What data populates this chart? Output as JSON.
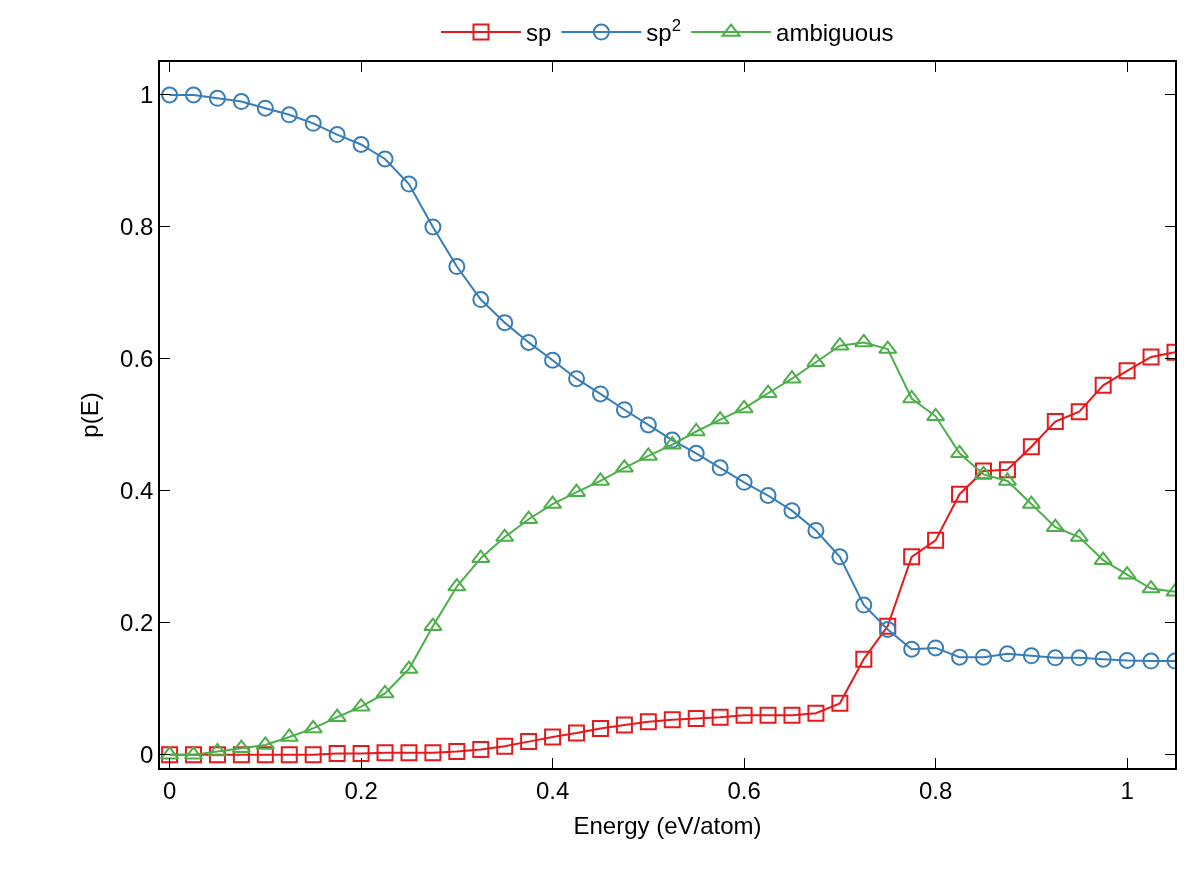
{
  "chart_data": {
    "type": "line",
    "xlabel": "Energy (eV/atom)",
    "ylabel": "p(E)",
    "x": [
      0,
      0.025,
      0.05,
      0.075,
      0.1,
      0.125,
      0.15,
      0.175,
      0.2,
      0.225,
      0.25,
      0.275,
      0.3,
      0.325,
      0.35,
      0.375,
      0.4,
      0.425,
      0.45,
      0.475,
      0.5,
      0.525,
      0.55,
      0.575,
      0.6,
      0.625,
      0.65,
      0.675,
      0.7,
      0.725,
      0.75,
      0.775,
      0.8,
      0.825,
      0.85,
      0.875,
      0.9,
      0.925,
      0.95,
      0.975,
      1.0,
      1.025,
      1.05
    ],
    "series": [
      {
        "name": "sp",
        "color": "#e41a1c",
        "marker": "square",
        "values": [
          0,
          0,
          0,
          0,
          0,
          0,
          0,
          0.002,
          0.002,
          0.003,
          0.003,
          0.003,
          0.005,
          0.008,
          0.013,
          0.02,
          0.027,
          0.033,
          0.04,
          0.045,
          0.05,
          0.053,
          0.055,
          0.057,
          0.06,
          0.06,
          0.06,
          0.063,
          0.078,
          0.145,
          0.195,
          0.3,
          0.325,
          0.395,
          0.43,
          0.432,
          0.467,
          0.505,
          0.52,
          0.56,
          0.582,
          0.603,
          0.61
        ]
      },
      {
        "name": "sp$^{2}$",
        "color": "#377eb8",
        "marker": "circle",
        "values": [
          1.0,
          1.0,
          0.995,
          0.99,
          0.98,
          0.97,
          0.957,
          0.94,
          0.925,
          0.903,
          0.865,
          0.8,
          0.74,
          0.69,
          0.655,
          0.625,
          0.598,
          0.57,
          0.547,
          0.523,
          0.5,
          0.477,
          0.457,
          0.435,
          0.413,
          0.393,
          0.37,
          0.34,
          0.3,
          0.227,
          0.19,
          0.16,
          0.162,
          0.148,
          0.148,
          0.153,
          0.15,
          0.147,
          0.147,
          0.145,
          0.143,
          0.142,
          0.142
        ]
      },
      {
        "name": "ambiguous",
        "color": "#4daf4a",
        "marker": "triangle",
        "values": [
          0,
          0,
          0.005,
          0.01,
          0.015,
          0.027,
          0.04,
          0.057,
          0.073,
          0.093,
          0.13,
          0.195,
          0.255,
          0.298,
          0.33,
          0.357,
          0.38,
          0.398,
          0.415,
          0.435,
          0.453,
          0.47,
          0.49,
          0.508,
          0.525,
          0.548,
          0.57,
          0.595,
          0.62,
          0.625,
          0.615,
          0.54,
          0.513,
          0.457,
          0.425,
          0.415,
          0.38,
          0.345,
          0.33,
          0.295,
          0.273,
          0.252,
          0.247
        ]
      }
    ],
    "xlim": [
      -0.01,
      1.05
    ],
    "xticks": [
      0,
      0.2,
      0.4,
      0.6,
      0.8,
      1
    ],
    "ylim": [
      -0.02,
      1.05
    ],
    "yticks": [
      0,
      0.2,
      0.4,
      0.6,
      0.8,
      1
    ],
    "legend": "top",
    "line_style": "solid"
  }
}
